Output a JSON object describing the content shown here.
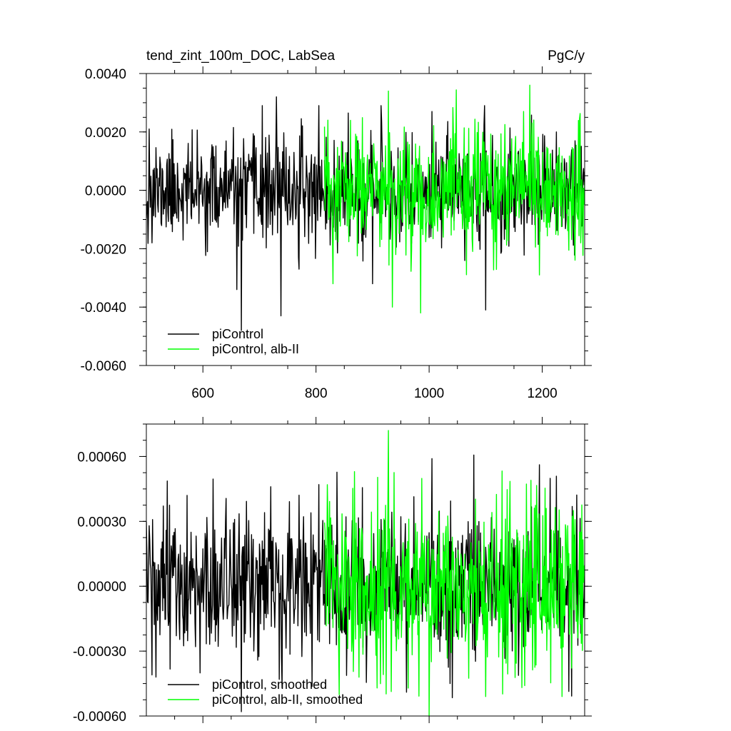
{
  "chart_data": [
    {
      "type": "line",
      "title": "tend_zint_100m_DOC, LabSea",
      "units": "PgC/y",
      "xlabel": "",
      "ylabel": "",
      "xlim": [
        500,
        1275
      ],
      "ylim": [
        -0.006,
        0.004
      ],
      "xticks": [
        600,
        800,
        1000,
        1200
      ],
      "xtick_labels": [
        "600",
        "800",
        "1000",
        "1200"
      ],
      "yticks": [
        -0.006,
        -0.004,
        -0.002,
        0.0,
        0.002,
        0.004
      ],
      "ytick_labels": [
        "-0.0060",
        "-0.0040",
        "-0.0020",
        "0.0000",
        "0.0020",
        "0.0040"
      ],
      "grid": false,
      "legend_position": "bottom-left",
      "series": [
        {
          "name": "piControl",
          "color": "#000000",
          "x_range": [
            500,
            815
          ],
          "x_step": 1,
          "seed": 11,
          "sd": 0.00085,
          "key_points": [
            [
              505,
              0.0021
            ],
            [
              510,
              -0.0018
            ],
            [
              660,
              -0.0034
            ],
            [
              668,
              -0.0048
            ],
            [
              705,
              0.0029
            ],
            [
              730,
              0.0032
            ],
            [
              738,
              -0.0043
            ],
            [
              770,
              -0.0027
            ],
            [
              805,
              0.0029
            ]
          ]
        },
        {
          "name": "piControl, alb-II",
          "color": "#00ff00",
          "x_range": [
            815,
            1275
          ],
          "x_step": 1,
          "seed": 23,
          "sd": 0.0011,
          "key_points": [
            [
              830,
              -0.0032
            ],
            [
              928,
              0.0034
            ],
            [
              935,
              -0.004
            ],
            [
              985,
              -0.0042
            ],
            [
              1178,
              0.0036
            ],
            [
              1195,
              -0.0029
            ],
            [
              1268,
              -0.0018
            ]
          ]
        },
        {
          "name": "piControl",
          "color": "#000000",
          "x_range": [
            815,
            1275
          ],
          "x_step": 1,
          "seed": 37,
          "sd": 0.0009,
          "key_points": [
            [
              900,
              -0.0032
            ],
            [
              915,
              0.0029
            ],
            [
              1100,
              -0.0041
            ],
            [
              1098,
              0.0029
            ],
            [
              1005,
              0.0027
            ]
          ]
        }
      ]
    },
    {
      "type": "line",
      "title": "",
      "units": "",
      "xlabel": "",
      "ylabel": "",
      "xlim": [
        500,
        1275
      ],
      "ylim": [
        -0.0006,
        0.00075
      ],
      "xticks": [
        600,
        800,
        1000,
        1200
      ],
      "xtick_labels": [
        "",
        "",
        "",
        ""
      ],
      "yticks": [
        -0.0006,
        -0.0003,
        0.0,
        0.0003,
        0.0006
      ],
      "ytick_labels": [
        "-0.00060",
        "-0.00030",
        "0.00000",
        "0.00030",
        "0.00060"
      ],
      "grid": false,
      "legend_position": "bottom-left",
      "series": [
        {
          "name": "piControl, smoothed",
          "color": "#000000",
          "x_range": [
            500,
            815
          ],
          "x_step": 1,
          "seed": 51,
          "sd": 0.00017,
          "key_points": [
            [
              505,
              0.00028
            ],
            [
              510,
              -0.00041
            ],
            [
              517,
              -0.00042
            ],
            [
              572,
              0.00042
            ],
            [
              668,
              -0.00058
            ],
            [
              720,
              0.00046
            ],
            [
              740,
              -0.00047
            ],
            [
              805,
              0.00047
            ]
          ]
        },
        {
          "name": "piControl, alb-II, smoothed",
          "color": "#00ff00",
          "x_range": [
            815,
            1275
          ],
          "x_step": 1,
          "seed": 63,
          "sd": 0.0002,
          "key_points": [
            [
              868,
              0.00053
            ],
            [
              928,
              0.00072
            ],
            [
              1000,
              -0.0006
            ],
            [
              1180,
              0.00049
            ],
            [
              1268,
              0.00025
            ]
          ]
        },
        {
          "name": "piControl, smoothed",
          "color": "#000000",
          "x_range": [
            815,
            1275
          ],
          "x_step": 1,
          "seed": 77,
          "sd": 0.00017,
          "key_points": [
            [
              1005,
              0.00059
            ],
            [
              960,
              -0.00049
            ]
          ]
        }
      ]
    }
  ]
}
